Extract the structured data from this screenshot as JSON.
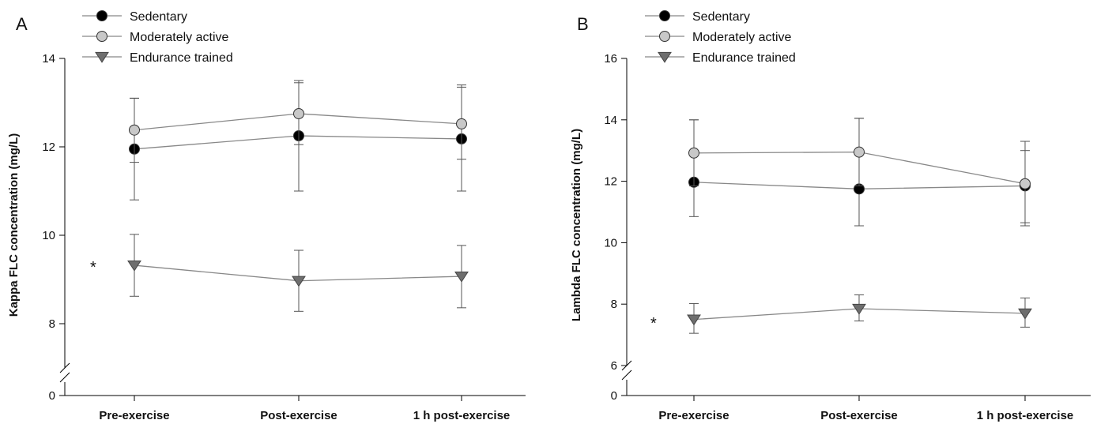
{
  "chart_data": [
    {
      "type": "line",
      "panel_label": "A",
      "ylabel": "Kappa FLC concentration (mg/L)",
      "xlabel": "",
      "categories": [
        "Pre-exercise",
        "Post-exercise",
        "1 h post-exercise"
      ],
      "ylim": [
        7,
        14
      ],
      "y_break": true,
      "yticks": [
        8,
        10,
        12,
        14
      ],
      "y_break_tick": "0",
      "legend_position": "top-left",
      "annotation": "*",
      "series": [
        {
          "name": "Sedentary",
          "marker": "circle",
          "color": "#000000",
          "values": [
            11.95,
            12.25,
            12.18
          ],
          "err_low": [
            10.8,
            11.0,
            11.0
          ],
          "err_high": [
            13.1,
            13.5,
            13.4
          ]
        },
        {
          "name": "Moderately active",
          "marker": "circle",
          "color": "#c8c8c8",
          "values": [
            12.38,
            12.75,
            12.52
          ],
          "err_low": [
            11.65,
            12.05,
            11.72
          ],
          "err_high": [
            13.1,
            13.45,
            13.35
          ]
        },
        {
          "name": "Endurance trained",
          "marker": "triangle-down",
          "color": "#6e6e6e",
          "values": [
            9.32,
            8.97,
            9.07
          ],
          "err_low": [
            8.62,
            8.28,
            8.36
          ],
          "err_high": [
            10.02,
            9.66,
            9.77
          ]
        }
      ]
    },
    {
      "type": "line",
      "panel_label": "B",
      "ylabel": "Lambda FLC concentration (mg/L)",
      "xlabel": "",
      "categories": [
        "Pre-exercise",
        "Post-exercise",
        "1 h post-exercise"
      ],
      "ylim": [
        6,
        16
      ],
      "y_break": true,
      "yticks": [
        6,
        8,
        10,
        12,
        14,
        16
      ],
      "y_break_tick": "0",
      "legend_position": "top-left",
      "annotation": "*",
      "series": [
        {
          "name": "Sedentary",
          "marker": "circle",
          "color": "#000000",
          "values": [
            11.97,
            11.75,
            11.85
          ],
          "err_low": [
            10.85,
            10.55,
            10.65
          ],
          "err_high": [
            14.0,
            14.05,
            13.0
          ]
        },
        {
          "name": "Moderately active",
          "marker": "circle",
          "color": "#c8c8c8",
          "values": [
            12.92,
            12.95,
            11.92
          ],
          "err_low": [
            11.85,
            11.85,
            10.55
          ],
          "err_high": [
            14.0,
            14.05,
            13.3
          ]
        },
        {
          "name": "Endurance trained",
          "marker": "triangle-down",
          "color": "#6e6e6e",
          "values": [
            7.5,
            7.85,
            7.7
          ],
          "err_low": [
            7.05,
            7.45,
            7.25
          ],
          "err_high": [
            8.02,
            8.3,
            8.2
          ]
        }
      ]
    }
  ]
}
